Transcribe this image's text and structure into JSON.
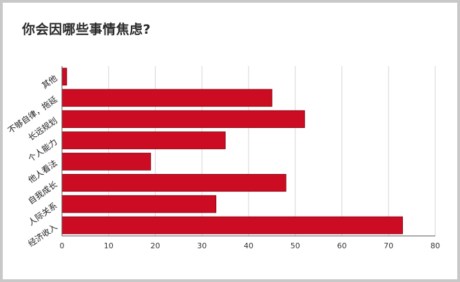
{
  "title": "你会因哪些事情焦虑?",
  "colors": {
    "bar": "#cc0c22",
    "bar_edge": "#8e0716",
    "grid": "#d6d6d6",
    "axis": "#555555",
    "frame": "#c8c8c8"
  },
  "chart_data": {
    "type": "bar",
    "orientation": "horizontal",
    "title": "你会因哪些事情焦虑?",
    "categories": [
      "其他",
      "不够自律，拖延",
      "长远规划",
      "个人能力",
      "他人看法",
      "自我成长",
      "人际关系",
      "经济收入"
    ],
    "values": [
      1,
      45,
      52,
      35,
      19,
      48,
      33,
      73
    ],
    "xlim": [
      0,
      80
    ],
    "xticks": [
      0,
      10,
      20,
      30,
      40,
      50,
      60,
      70,
      80
    ],
    "grid": true,
    "legend": "none"
  }
}
